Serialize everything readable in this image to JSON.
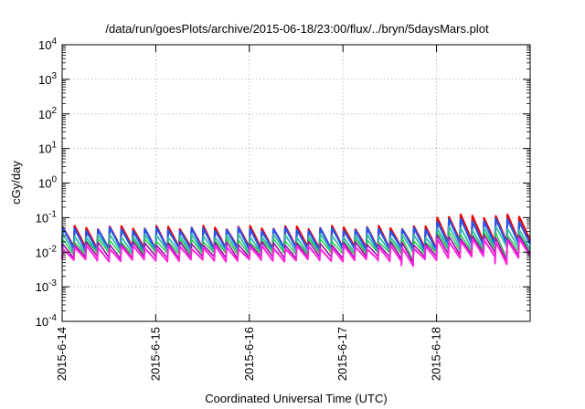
{
  "chart_data": {
    "type": "line",
    "title": "/data/run/goesPlots/archive/2015-06-18/23:00/flux/../bryn/5daysMars.plot",
    "xlabel": "Coordinated Universal Time (UTC)",
    "ylabel": "cGy/day",
    "yscale": "log",
    "ylim": [
      0.0001,
      10000
    ],
    "xlim": [
      "2015-6-14 00:00",
      "2015-6-19 00:00"
    ],
    "grid": true,
    "y_ticks": [
      {
        "base": "10",
        "exp": "-4",
        "value": 0.0001
      },
      {
        "base": "10",
        "exp": "-3",
        "value": 0.001
      },
      {
        "base": "10",
        "exp": "-2",
        "value": 0.01
      },
      {
        "base": "10",
        "exp": "-1",
        "value": 0.1
      },
      {
        "base": "10",
        "exp": "0",
        "value": 1
      },
      {
        "base": "10",
        "exp": "1",
        "value": 10
      },
      {
        "base": "10",
        "exp": "2",
        "value": 100
      },
      {
        "base": "10",
        "exp": "3",
        "value": 1000
      },
      {
        "base": "10",
        "exp": "4",
        "value": 10000
      }
    ],
    "x_ticks": [
      {
        "label": "2015-6-14",
        "value": "2015-6-14 00:00"
      },
      {
        "label": "2015-6-15",
        "value": "2015-6-15 00:00"
      },
      {
        "label": "2015-6-16",
        "value": "2015-6-16 00:00"
      },
      {
        "label": "2015-6-17",
        "value": "2015-6-17 00:00"
      },
      {
        "label": "2015-6-18",
        "value": "2015-6-18 00:00"
      }
    ],
    "series_shape": {
      "pattern": "sawtooth: sharp rise at each step then decay until the next step",
      "x_start": "2015-6-14 00:00",
      "x_end": "2015-6-19 00:00",
      "step_hours": 3
    },
    "series": [
      {
        "color": "#ee0000",
        "stroke": 2.2,
        "base_peak": 0.052,
        "base_trough": 0.013,
        "late_peak": 0.11,
        "late_trough": 0.02
      },
      {
        "color": "#2255ee",
        "stroke": 2.2,
        "base_peak": 0.046,
        "base_trough": 0.012,
        "late_peak": 0.085,
        "late_trough": 0.017
      },
      {
        "color": "#33bbaa",
        "stroke": 1.8,
        "base_peak": 0.03,
        "base_trough": 0.01,
        "late_peak": 0.05,
        "late_trough": 0.013
      },
      {
        "color": "#22cc44",
        "stroke": 1.4,
        "base_peak": 0.022,
        "base_trough": 0.009,
        "late_peak": 0.035,
        "late_trough": 0.011
      },
      {
        "color": "#9911aa",
        "stroke": 1.6,
        "base_peak": 0.018,
        "base_trough": 0.007,
        "late_peak": 0.028,
        "late_trough": 0.009
      },
      {
        "color": "#ff22dd",
        "stroke": 2.0,
        "base_peak": 0.014,
        "base_trough": 0.0058,
        "late_peak": 0.022,
        "late_trough": 0.0072
      }
    ],
    "dips": [
      {
        "x": "2015-6-17 17:00",
        "value": 0.004
      },
      {
        "x": "2015-6-18 17:00",
        "value": 0.0045
      }
    ]
  }
}
